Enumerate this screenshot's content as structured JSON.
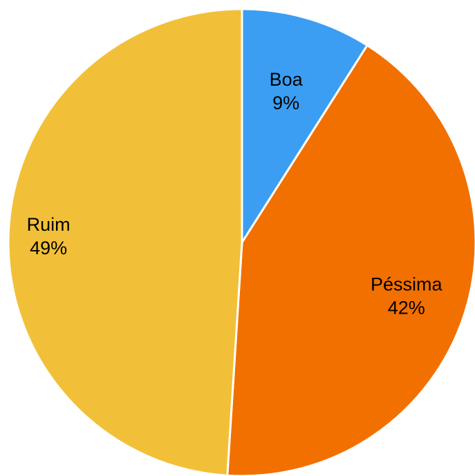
{
  "chart_data": {
    "type": "pie",
    "title": "",
    "start_angle_deg": 0,
    "direction": "clockwise",
    "legend": "none",
    "slices": [
      {
        "label": "Boa",
        "value": 9,
        "display_value": "9%",
        "color": "#3b9ef2"
      },
      {
        "label": "Péssima",
        "value": 42,
        "display_value": "42%",
        "color": "#f27000"
      },
      {
        "label": "Ruim",
        "value": 49,
        "display_value": "49%",
        "color": "#f2c038"
      }
    ]
  }
}
